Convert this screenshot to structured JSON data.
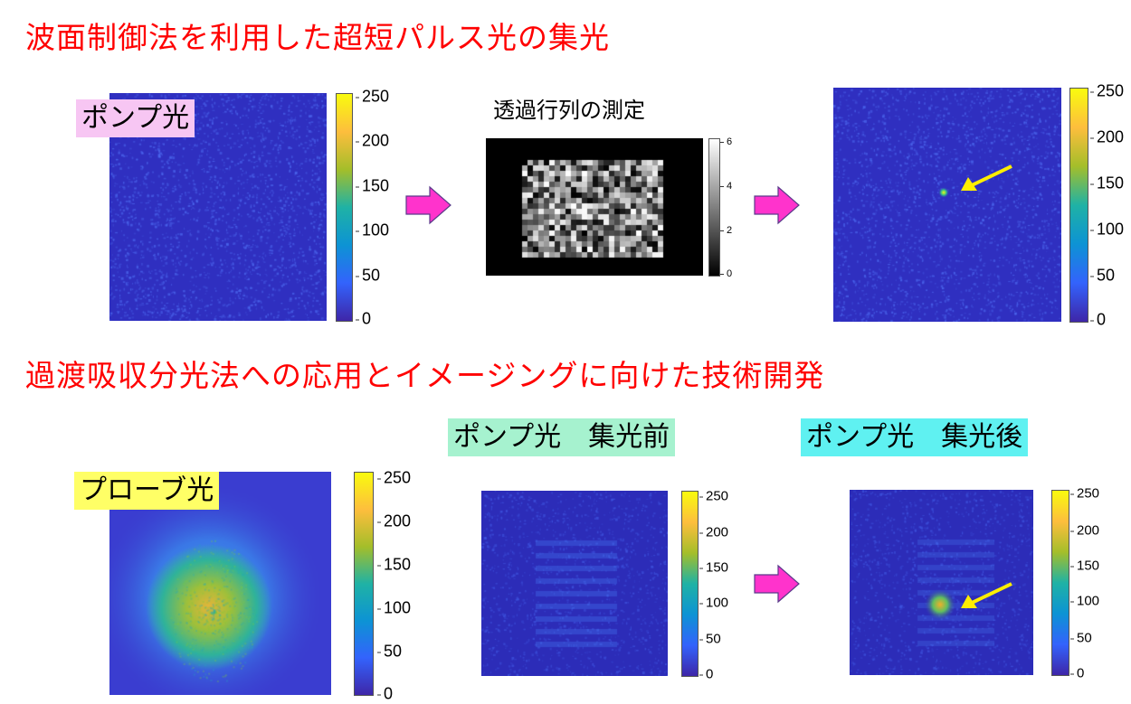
{
  "headings": {
    "top": "波面制御法を利用した超短パルス光の集光",
    "bottom": "過渡吸収分光法への応用とイメージングに向けた技術開発"
  },
  "labels": {
    "pump_light": "ポンプ光",
    "transmission_matrix": "透過行列の測定",
    "probe_light": "プローブ光",
    "pump_before": "ポンプ光　集光前",
    "pump_after": "ポンプ光　集光後"
  },
  "colorbars": {
    "parula_ticks": [
      "250",
      "200",
      "150",
      "100",
      "50",
      "0"
    ],
    "gray_ticks": [
      "6",
      "4",
      "2",
      "0"
    ]
  },
  "colors": {
    "heading": "#ff0000",
    "pump_label_bg": "#f7c6f3",
    "probe_label_bg": "#ffff66",
    "before_label_bg": "#a6f2cf",
    "after_label_bg": "#5ff1f1",
    "process_arrow": "#ff33cc",
    "highlight_arrow": "#ffee00"
  }
}
